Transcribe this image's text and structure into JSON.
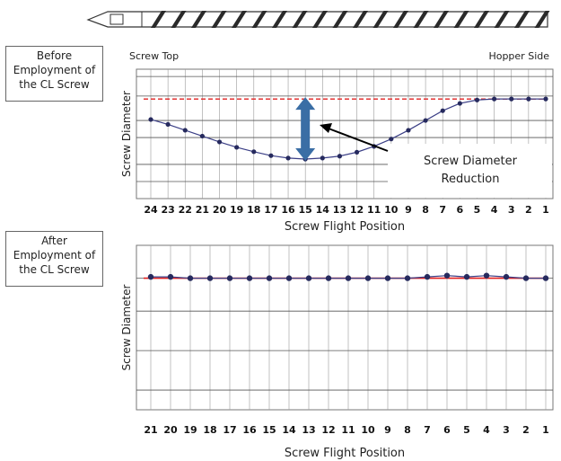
{
  "colors": {
    "series_line": "#3b3f86",
    "series_marker": "#262a5e",
    "reference_line": "#e02020",
    "grid": "#9a9a9a",
    "arrow_fill": "#3a6ea5",
    "screw_body": "#ffffff",
    "screw_flight": "#2a2a2a"
  },
  "illustration": {
    "icon": "screw-icon"
  },
  "panels": [
    {
      "box_label": [
        "Before",
        "Employment of",
        "the CL Screw"
      ],
      "left_end_label": "Screw Top",
      "right_end_label": "Hopper Side",
      "annotation": {
        "lines": [
          "Screw Diameter",
          "Reduction"
        ],
        "double_arrow_icon": "vertical-double-arrow-icon",
        "pointer_icon": "pointer-arrow-icon"
      }
    },
    {
      "box_label": [
        "After",
        "Employment of",
        "the CL Screw"
      ]
    }
  ],
  "chart_data": [
    {
      "type": "line",
      "xlabel": "Screw Flight Position",
      "ylabel": "Screw Diameter",
      "categories": [
        "24",
        "23",
        "22",
        "21",
        "20",
        "19",
        "18",
        "17",
        "16",
        "15",
        "14",
        "13",
        "12",
        "11",
        "10",
        "9",
        "8",
        "7",
        "6",
        "5",
        "4",
        "3",
        "2",
        "1"
      ],
      "series": [
        {
          "values": [
            0.72,
            0.62,
            0.5,
            0.38,
            0.26,
            0.15,
            0.06,
            -0.02,
            -0.07,
            -0.09,
            -0.07,
            -0.03,
            0.05,
            0.17,
            0.32,
            0.5,
            0.7,
            0.9,
            1.05,
            1.12,
            1.14,
            1.14,
            1.14,
            1.14
          ]
        }
      ],
      "reference_line": 1.14,
      "ylim": [
        -0.9,
        1.75
      ],
      "y_grid_values": [
        1.6,
        1.2,
        0.7,
        0.35,
        -0.2,
        -0.55
      ],
      "grid": true
    },
    {
      "type": "line",
      "xlabel": "Screw Flight Position",
      "ylabel": "Screw Diameter",
      "categories": [
        "21",
        "20",
        "19",
        "18",
        "17",
        "16",
        "15",
        "14",
        "13",
        "12",
        "11",
        "10",
        "9",
        "8",
        "7",
        "6",
        "5",
        "4",
        "3",
        "2",
        "1"
      ],
      "series": [
        {
          "values": [
            1.01,
            1.01,
            1.0,
            1.0,
            1.0,
            1.0,
            1.0,
            1.0,
            1.0,
            1.0,
            1.0,
            1.0,
            1.0,
            1.0,
            1.01,
            1.02,
            1.01,
            1.02,
            1.01,
            1.0,
            1.0
          ]
        }
      ],
      "reference_line": 1.0,
      "ylim": [
        0,
        1.25
      ],
      "y_grid_values": [
        1.0,
        0.75,
        0.45,
        0.15
      ],
      "grid": true
    }
  ]
}
